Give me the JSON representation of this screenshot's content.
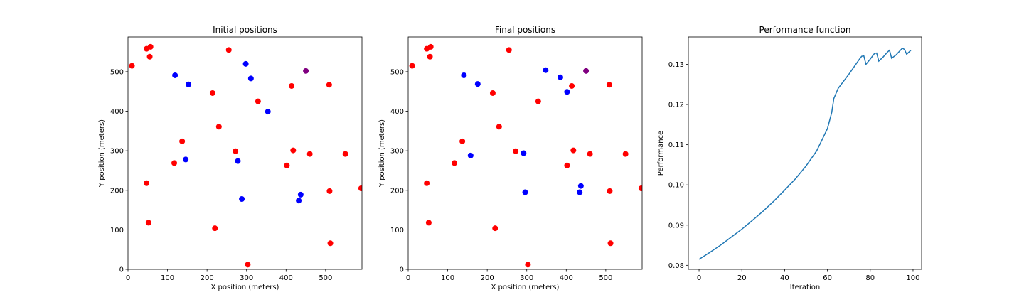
{
  "chart_data": [
    {
      "type": "scatter",
      "title": "Initial positions",
      "xlabel": "X position (meters)",
      "ylabel": "Y position (meters)",
      "xlim": [
        0,
        592
      ],
      "ylim": [
        0,
        588
      ],
      "xticks": [
        0,
        100,
        200,
        300,
        400,
        500
      ],
      "yticks": [
        0,
        100,
        200,
        300,
        400,
        500
      ],
      "grid": false,
      "series": [
        {
          "color": "#ff0000",
          "points": [
            [
              10,
              515
            ],
            [
              47,
              558
            ],
            [
              57,
              563
            ],
            [
              55,
              538
            ],
            [
              255,
              555
            ],
            [
              214,
              446
            ],
            [
              329,
              425
            ],
            [
              414,
              464
            ],
            [
              509,
              467
            ],
            [
              230,
              361
            ],
            [
              137,
              324
            ],
            [
              272,
              299
            ],
            [
              418,
              301
            ],
            [
              460,
              292
            ],
            [
              550,
              292
            ],
            [
              117,
              269
            ],
            [
              402,
              263
            ],
            [
              47,
              218
            ],
            [
              510,
              198
            ],
            [
              590,
              205
            ],
            [
              52,
              118
            ],
            [
              220,
              104
            ],
            [
              512,
              66
            ],
            [
              303,
              12
            ]
          ]
        },
        {
          "color": "#0000ff",
          "points": [
            [
              119,
              491
            ],
            [
              153,
              468
            ],
            [
              298,
              520
            ],
            [
              311,
              483
            ],
            [
              354,
              399
            ],
            [
              146,
              278
            ],
            [
              278,
              274
            ],
            [
              288,
              178
            ],
            [
              437,
              189
            ],
            [
              432,
              174
            ]
          ]
        },
        {
          "color": "#800080",
          "points": [
            [
              450,
              502
            ]
          ]
        }
      ]
    },
    {
      "type": "scatter",
      "title": "Final positions",
      "xlabel": "X position (meters)",
      "ylabel": "Y position (meters)",
      "xlim": [
        0,
        592
      ],
      "ylim": [
        0,
        588
      ],
      "xticks": [
        0,
        100,
        200,
        300,
        400,
        500
      ],
      "yticks": [
        0,
        100,
        200,
        300,
        400,
        500
      ],
      "grid": false,
      "series": [
        {
          "color": "#ff0000",
          "points": [
            [
              10,
              515
            ],
            [
              47,
              558
            ],
            [
              57,
              563
            ],
            [
              55,
              538
            ],
            [
              255,
              555
            ],
            [
              214,
              446
            ],
            [
              329,
              425
            ],
            [
              414,
              464
            ],
            [
              509,
              467
            ],
            [
              230,
              361
            ],
            [
              137,
              324
            ],
            [
              272,
              299
            ],
            [
              418,
              301
            ],
            [
              460,
              292
            ],
            [
              550,
              292
            ],
            [
              117,
              269
            ],
            [
              402,
              263
            ],
            [
              47,
              218
            ],
            [
              510,
              198
            ],
            [
              590,
              205
            ],
            [
              52,
              118
            ],
            [
              220,
              104
            ],
            [
              512,
              66
            ],
            [
              303,
              12
            ]
          ]
        },
        {
          "color": "#0000ff",
          "points": [
            [
              141,
              491
            ],
            [
              176,
              469
            ],
            [
              348,
              504
            ],
            [
              385,
              486
            ],
            [
              402,
              449
            ],
            [
              158,
              288
            ],
            [
              292,
              294
            ],
            [
              296,
              195
            ],
            [
              437,
              211
            ],
            [
              434,
              195
            ]
          ]
        },
        {
          "color": "#800080",
          "points": [
            [
              450,
              502
            ]
          ]
        }
      ]
    },
    {
      "type": "line",
      "title": "Performance function",
      "xlabel": "Iteration",
      "ylabel": "Performance",
      "xlim": [
        -5,
        104
      ],
      "ylim": [
        0.079,
        0.1368
      ],
      "xticks": [
        0,
        20,
        40,
        60,
        80,
        100
      ],
      "yticks": [
        0.08,
        0.09,
        0.1,
        0.11,
        0.12,
        0.13
      ],
      "ytick_labels": [
        "0.08",
        "0.09",
        "0.10",
        "0.11",
        "0.12",
        "0.13"
      ],
      "grid": false,
      "series": [
        {
          "color": "#1f77b4",
          "points": [
            [
              0,
              0.0815
            ],
            [
              5,
              0.0832
            ],
            [
              10,
              0.085
            ],
            [
              15,
              0.087
            ],
            [
              20,
              0.089
            ],
            [
              25,
              0.0912
            ],
            [
              30,
              0.0935
            ],
            [
              35,
              0.096
            ],
            [
              40,
              0.0987
            ],
            [
              45,
              0.1015
            ],
            [
              50,
              0.1047
            ],
            [
              55,
              0.1085
            ],
            [
              60,
              0.114
            ],
            [
              62,
              0.118
            ],
            [
              63,
              0.1215
            ],
            [
              65,
              0.124
            ],
            [
              70,
              0.1275
            ],
            [
              75,
              0.1313
            ],
            [
              76,
              0.132
            ],
            [
              77,
              0.1321
            ],
            [
              78,
              0.13
            ],
            [
              80,
              0.1313
            ],
            [
              82,
              0.1327
            ],
            [
              83,
              0.1328
            ],
            [
              84,
              0.1308
            ],
            [
              86,
              0.1318
            ],
            [
              88,
              0.133
            ],
            [
              89,
              0.1335
            ],
            [
              90,
              0.1315
            ],
            [
              92,
              0.1323
            ],
            [
              95,
              0.134
            ],
            [
              96,
              0.1337
            ],
            [
              97,
              0.1325
            ],
            [
              99,
              0.1335
            ]
          ]
        }
      ]
    }
  ]
}
